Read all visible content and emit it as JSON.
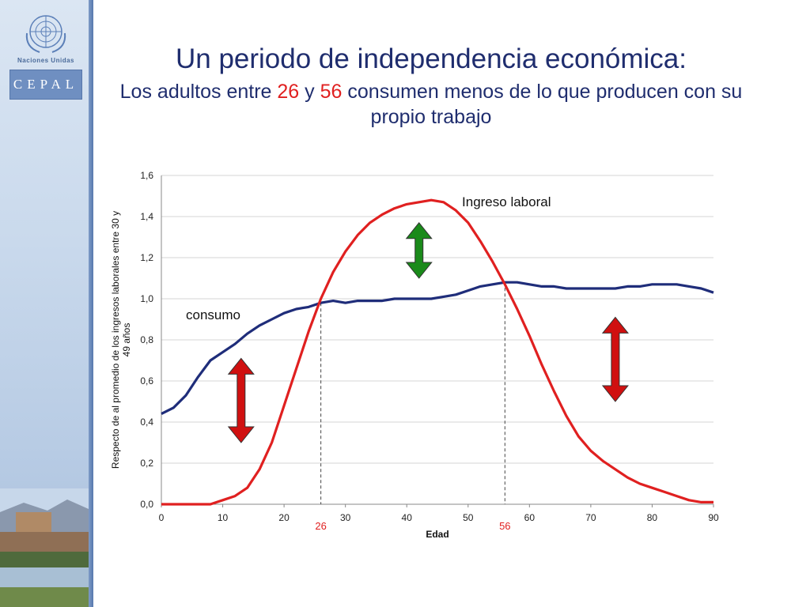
{
  "header": {
    "title": "Un periodo de independencia económica:",
    "subtitle_pre": "Los adultos entre ",
    "age_start": "26",
    "subtitle_mid": " y ",
    "age_end": "56",
    "subtitle_post": " consumen menos de lo que producen con su propio trabajo"
  },
  "branding": {
    "un_label": "Naciones Unidas",
    "cepal_label": "CEPAL"
  },
  "colors": {
    "consumo": "#1f2d7a",
    "ingreso": "#e02020",
    "arrow_red": "#d01010",
    "arrow_green": "#1a8a1a",
    "title": "#1f2d6e"
  },
  "chart_data": {
    "type": "line",
    "xlabel": "Edad",
    "ylabel": "Respecto de al promedio de los ingresos laborales entre 30 y 49 años",
    "xlim": [
      0,
      90
    ],
    "ylim": [
      0,
      1.6
    ],
    "xticks": [
      "0",
      "10",
      "20",
      "30",
      "40",
      "50",
      "60",
      "70",
      "80",
      "90"
    ],
    "yticks": [
      "0,0",
      "0,2",
      "0,4",
      "0,6",
      "0,8",
      "1,0",
      "1,2",
      "1,4",
      "1,6"
    ],
    "grid": "horizontal",
    "series": [
      {
        "name": "consumo",
        "x": [
          0,
          2,
          4,
          6,
          8,
          10,
          12,
          14,
          16,
          18,
          20,
          22,
          24,
          26,
          28,
          30,
          32,
          34,
          36,
          38,
          40,
          42,
          44,
          46,
          48,
          50,
          52,
          54,
          56,
          58,
          60,
          62,
          64,
          66,
          68,
          70,
          72,
          74,
          76,
          78,
          80,
          82,
          84,
          86,
          88,
          90
        ],
        "y": [
          0.44,
          0.47,
          0.53,
          0.62,
          0.7,
          0.74,
          0.78,
          0.83,
          0.87,
          0.9,
          0.93,
          0.95,
          0.96,
          0.98,
          0.99,
          0.98,
          0.99,
          0.99,
          0.99,
          1.0,
          1.0,
          1.0,
          1.0,
          1.01,
          1.02,
          1.04,
          1.06,
          1.07,
          1.08,
          1.08,
          1.07,
          1.06,
          1.06,
          1.05,
          1.05,
          1.05,
          1.05,
          1.05,
          1.06,
          1.06,
          1.07,
          1.07,
          1.07,
          1.06,
          1.05,
          1.03
        ]
      },
      {
        "name": "Ingreso laboral",
        "x": [
          0,
          2,
          4,
          6,
          8,
          10,
          12,
          14,
          16,
          18,
          20,
          22,
          24,
          26,
          28,
          30,
          32,
          34,
          36,
          38,
          40,
          42,
          44,
          46,
          48,
          50,
          52,
          54,
          56,
          58,
          60,
          62,
          64,
          66,
          68,
          70,
          72,
          74,
          76,
          78,
          80,
          82,
          84,
          86,
          88,
          90
        ],
        "y": [
          0.0,
          0.0,
          0.0,
          0.0,
          0.0,
          0.02,
          0.04,
          0.08,
          0.17,
          0.3,
          0.48,
          0.66,
          0.84,
          1.0,
          1.13,
          1.23,
          1.31,
          1.37,
          1.41,
          1.44,
          1.46,
          1.47,
          1.48,
          1.47,
          1.43,
          1.37,
          1.28,
          1.18,
          1.07,
          0.95,
          0.82,
          0.68,
          0.55,
          0.43,
          0.33,
          0.26,
          0.21,
          0.17,
          0.13,
          0.1,
          0.08,
          0.06,
          0.04,
          0.02,
          0.01,
          0.01
        ]
      }
    ],
    "markers": [
      {
        "x": 26,
        "label": "26"
      },
      {
        "x": 56,
        "label": "56"
      }
    ],
    "annotations": [
      {
        "text": "consumo",
        "x": 4,
        "y": 0.9
      },
      {
        "text": "Ingreso laboral",
        "x": 49,
        "y": 1.45
      }
    ],
    "arrows": [
      {
        "x": 13,
        "y_top": 0.71,
        "y_bottom": 0.3,
        "color": "red"
      },
      {
        "x": 42,
        "y_top": 1.37,
        "y_bottom": 1.1,
        "color": "green"
      },
      {
        "x": 74,
        "y_top": 0.91,
        "y_bottom": 0.5,
        "color": "red"
      }
    ]
  }
}
